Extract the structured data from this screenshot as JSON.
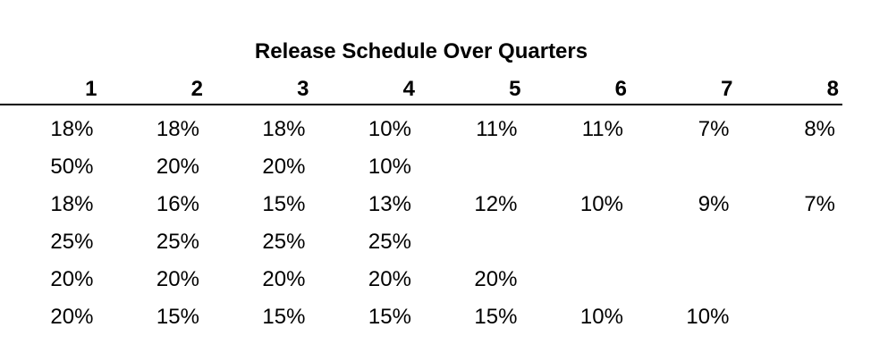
{
  "title": "Release Schedule Over Quarters",
  "columns": [
    "1",
    "2",
    "3",
    "4",
    "5",
    "6",
    "7",
    "8"
  ],
  "rows": [
    [
      "18%",
      "18%",
      "18%",
      "10%",
      "11%",
      "11%",
      "7%",
      "8%"
    ],
    [
      "50%",
      "20%",
      "20%",
      "10%",
      "",
      "",
      "",
      ""
    ],
    [
      "18%",
      "16%",
      "15%",
      "13%",
      "12%",
      "10%",
      "9%",
      "7%"
    ],
    [
      "25%",
      "25%",
      "25%",
      "25%",
      "",
      "",
      "",
      ""
    ],
    [
      "20%",
      "20%",
      "20%",
      "20%",
      "20%",
      "",
      "",
      ""
    ],
    [
      "20%",
      "15%",
      "15%",
      "15%",
      "15%",
      "10%",
      "10%",
      ""
    ]
  ]
}
